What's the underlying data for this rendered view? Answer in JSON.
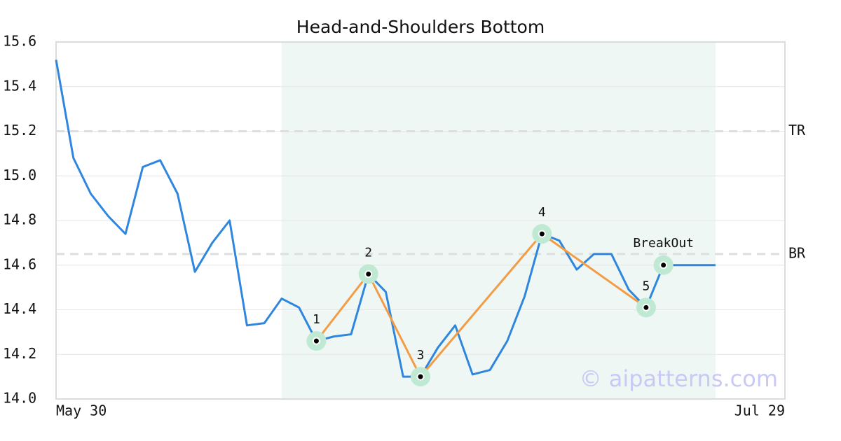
{
  "chart_data": {
    "type": "line",
    "title": "Head-and-Shoulders Bottom",
    "categories": [
      "May 30",
      null,
      null,
      null,
      null,
      null,
      null,
      null,
      null,
      null,
      null,
      null,
      null,
      null,
      null,
      null,
      null,
      null,
      null,
      null,
      null,
      null,
      null,
      null,
      null,
      null,
      null,
      null,
      null,
      null,
      null,
      null,
      null,
      null,
      null,
      null,
      null,
      null,
      null,
      null,
      null,
      null,
      "Jul 29"
    ],
    "series": [
      {
        "color": "#2e86de",
        "values": [
          15.52,
          15.08,
          14.92,
          14.82,
          14.74,
          15.04,
          15.07,
          14.92,
          14.57,
          14.7,
          14.8,
          14.33,
          14.34,
          14.45,
          14.41,
          14.26,
          14.28,
          14.29,
          14.56,
          14.48,
          14.1,
          14.1,
          14.23,
          14.33,
          14.11,
          14.13,
          14.26,
          14.46,
          14.74,
          14.71,
          14.58,
          14.65,
          14.65,
          14.49,
          14.41,
          14.6,
          14.6,
          14.6,
          14.6,
          null,
          null,
          null,
          null
        ]
      }
    ],
    "ylim": [
      14.0,
      15.6
    ],
    "yticks": [
      {
        "value": 14.0,
        "label": "14.0"
      },
      14.2,
      14.4,
      14.6,
      14.8,
      {
        "value": 15.0,
        "label": "15.0"
      },
      15.2,
      15.4,
      15.6
    ],
    "grid": true,
    "shade_range": [
      13,
      38
    ],
    "reference_lines": [
      {
        "label": "TR",
        "value": 15.2
      },
      {
        "label": "BR",
        "value": 14.65
      }
    ],
    "pattern": {
      "color": "#f39c45",
      "points": [
        {
          "label": "1",
          "index": 15,
          "value": 14.26
        },
        {
          "label": "2",
          "index": 18,
          "value": 14.56
        },
        {
          "label": "3",
          "index": 21,
          "value": 14.1
        },
        {
          "label": "4",
          "index": 28,
          "value": 14.74
        },
        {
          "label": "5",
          "index": 34,
          "value": 14.41
        }
      ]
    },
    "breakout": {
      "label": "BreakOut",
      "index": 35,
      "value": 14.6
    },
    "watermark": "© aipatterns.com"
  }
}
